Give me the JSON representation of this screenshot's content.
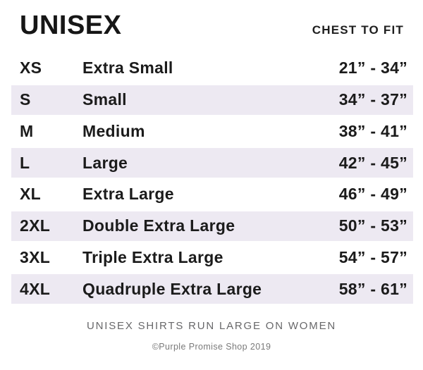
{
  "header": {
    "title": "UNISEX",
    "right_label": "CHEST TO FIT"
  },
  "table": {
    "rows": [
      {
        "code": "XS",
        "name": "Extra Small",
        "range": "21” - 34”"
      },
      {
        "code": "S",
        "name": "Small",
        "range": "34” - 37”"
      },
      {
        "code": "M",
        "name": "Medium",
        "range": "38” - 41”"
      },
      {
        "code": "L",
        "name": "Large",
        "range": "42” - 45”"
      },
      {
        "code": "XL",
        "name": "Extra Large",
        "range": "46” - 49”"
      },
      {
        "code": "2XL",
        "name": "Double Extra Large",
        "range": "50” - 53”"
      },
      {
        "code": "3XL",
        "name": "Triple Extra Large",
        "range": "54” - 57”"
      },
      {
        "code": "4XL",
        "name": "Quadruple Extra Large",
        "range": "58” - 61”"
      }
    ]
  },
  "footer": {
    "note": "UNISEX SHIRTS RUN LARGE ON WOMEN",
    "copyright": "©Purple Promise Shop 2019"
  },
  "colors": {
    "stripe": "#ede9f2",
    "text": "#1b1b1b",
    "note_text": "#68686a"
  }
}
